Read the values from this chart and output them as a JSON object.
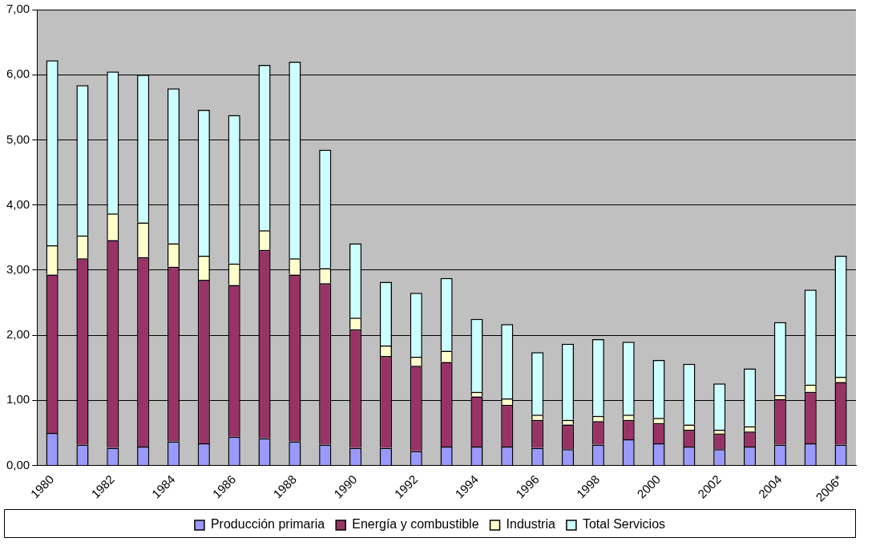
{
  "chart_data": {
    "type": "bar",
    "stacked": true,
    "grid": "y",
    "legend": "bottom",
    "categories": [
      "1980",
      null,
      "1982",
      null,
      "1984",
      null,
      "1986",
      null,
      "1988",
      null,
      "1990",
      null,
      "1992",
      null,
      "1994",
      null,
      "1996",
      null,
      "1998",
      null,
      "2000",
      null,
      "2002",
      null,
      "2004",
      null,
      "2006*"
    ],
    "ylim": [
      0,
      7
    ],
    "yticks": [
      {
        "value": 0,
        "label": "0,00"
      },
      {
        "value": 1,
        "label": "1,00"
      },
      {
        "value": 2,
        "label": "2,00"
      },
      {
        "value": 3,
        "label": "3,00"
      },
      {
        "value": 4,
        "label": "4,00"
      },
      {
        "value": 5,
        "label": "5,00"
      },
      {
        "value": 6,
        "label": "6,00"
      },
      {
        "value": 7,
        "label": "7,00"
      }
    ],
    "series": [
      {
        "name": "Producción primaria",
        "color": "#9999ff",
        "values": [
          0.5,
          0.32,
          0.27,
          0.29,
          0.37,
          0.34,
          0.44,
          0.42,
          0.37,
          0.32,
          0.27,
          0.27,
          0.22,
          0.29,
          0.29,
          0.29,
          0.27,
          0.25,
          0.32,
          0.4,
          0.34,
          0.29,
          0.25,
          0.29,
          0.32,
          0.34,
          0.32
        ]
      },
      {
        "name": "Energía y combustible",
        "color": "#993366",
        "values": [
          2.43,
          2.86,
          3.19,
          2.91,
          2.68,
          2.51,
          2.33,
          2.89,
          2.56,
          2.48,
          1.82,
          1.41,
          1.31,
          1.3,
          0.77,
          0.64,
          0.43,
          0.38,
          0.36,
          0.3,
          0.31,
          0.26,
          0.24,
          0.23,
          0.7,
          0.79,
          0.96
        ]
      },
      {
        "name": "Industria",
        "color": "#ffffcc",
        "values": [
          0.45,
          0.35,
          0.41,
          0.53,
          0.36,
          0.37,
          0.33,
          0.3,
          0.25,
          0.23,
          0.18,
          0.16,
          0.14,
          0.17,
          0.07,
          0.1,
          0.08,
          0.07,
          0.08,
          0.08,
          0.08,
          0.08,
          0.06,
          0.08,
          0.06,
          0.11,
          0.08
        ]
      },
      {
        "name": "Total Servicios",
        "color": "#ccffff",
        "values": [
          2.84,
          2.31,
          2.18,
          2.27,
          2.38,
          2.24,
          2.28,
          2.54,
          3.02,
          1.82,
          1.14,
          0.98,
          0.98,
          1.12,
          1.12,
          1.14,
          0.96,
          1.17,
          1.18,
          1.12,
          0.89,
          0.93,
          0.71,
          0.89,
          1.12,
          1.46,
          1.86
        ]
      }
    ]
  }
}
